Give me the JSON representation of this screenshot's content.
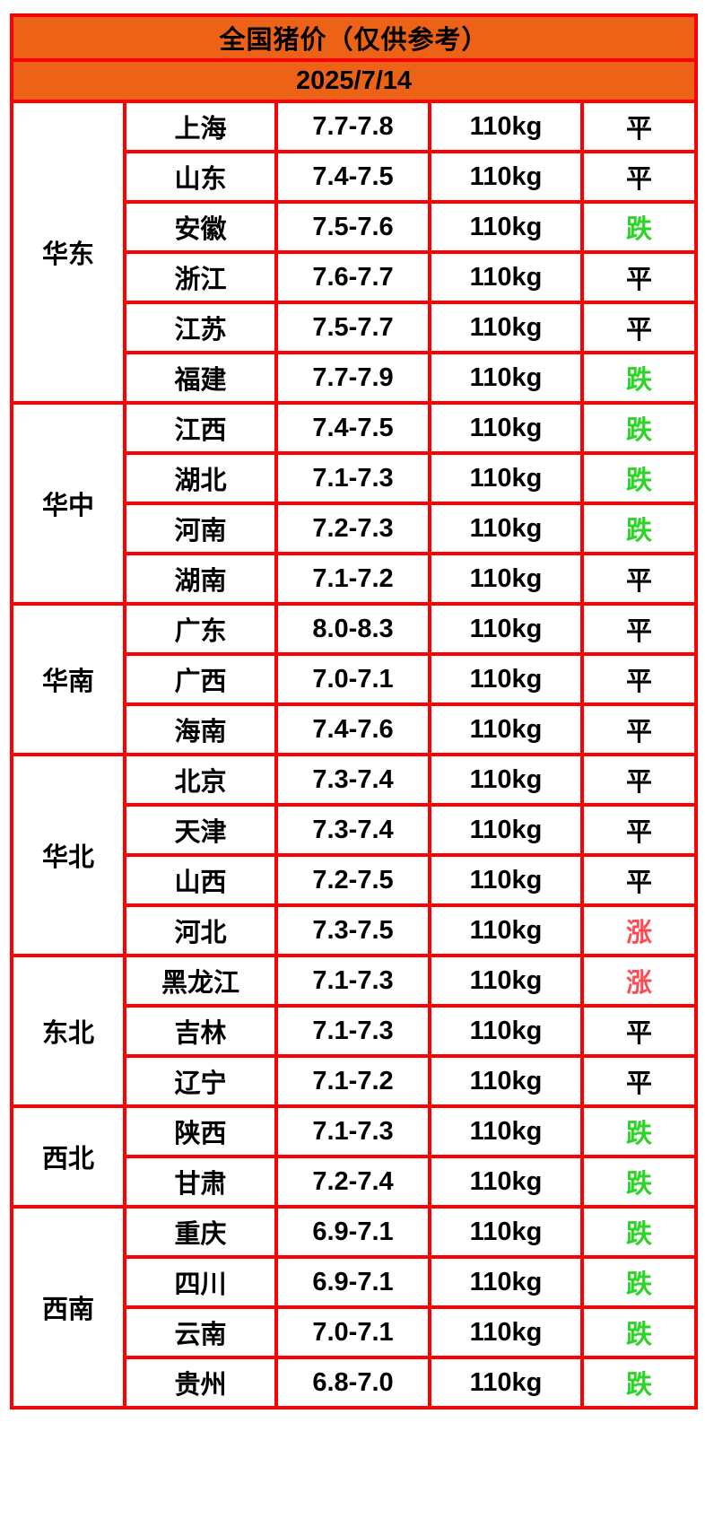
{
  "title": "全国猪价（仅供参考）",
  "date": "2025/7/14",
  "unit_note": "110kg",
  "theme": {
    "header_orange": "#ec6217",
    "grid_red": "#fe0000",
    "text_black": "#000000",
    "background_white": "#ffffff"
  },
  "status_colors": {
    "平": "#000000",
    "跌": "#2bd426",
    "涨": "#ff4a55"
  },
  "regions": [
    {
      "name": "华东",
      "provinces": [
        {
          "province": "上海",
          "price": "7.7-7.8",
          "weight": "110kg",
          "status": "平"
        },
        {
          "province": "山东",
          "price": "7.4-7.5",
          "weight": "110kg",
          "status": "平"
        },
        {
          "province": "安徽",
          "price": "7.5-7.6",
          "weight": "110kg",
          "status": "跌"
        },
        {
          "province": "浙江",
          "price": "7.6-7.7",
          "weight": "110kg",
          "status": "平"
        },
        {
          "province": "江苏",
          "price": "7.5-7.7",
          "weight": "110kg",
          "status": "平"
        },
        {
          "province": "福建",
          "price": "7.7-7.9",
          "weight": "110kg",
          "status": "跌"
        }
      ]
    },
    {
      "name": "华中",
      "provinces": [
        {
          "province": "江西",
          "price": "7.4-7.5",
          "weight": "110kg",
          "status": "跌"
        },
        {
          "province": "湖北",
          "price": "7.1-7.3",
          "weight": "110kg",
          "status": "跌"
        },
        {
          "province": "河南",
          "price": "7.2-7.3",
          "weight": "110kg",
          "status": "跌"
        },
        {
          "province": "湖南",
          "price": "7.1-7.2",
          "weight": "110kg",
          "status": "平"
        }
      ]
    },
    {
      "name": "华南",
      "provinces": [
        {
          "province": "广东",
          "price": "8.0-8.3",
          "weight": "110kg",
          "status": "平"
        },
        {
          "province": "广西",
          "price": "7.0-7.1",
          "weight": "110kg",
          "status": "平"
        },
        {
          "province": "海南",
          "price": "7.4-7.6",
          "weight": "110kg",
          "status": "平"
        }
      ]
    },
    {
      "name": "华北",
      "provinces": [
        {
          "province": "北京",
          "price": "7.3-7.4",
          "weight": "110kg",
          "status": "平"
        },
        {
          "province": "天津",
          "price": "7.3-7.4",
          "weight": "110kg",
          "status": "平"
        },
        {
          "province": "山西",
          "price": "7.2-7.5",
          "weight": "110kg",
          "status": "平"
        },
        {
          "province": "河北",
          "price": "7.3-7.5",
          "weight": "110kg",
          "status": "涨"
        }
      ]
    },
    {
      "name": "东北",
      "provinces": [
        {
          "province": "黑龙江",
          "price": "7.1-7.3",
          "weight": "110kg",
          "status": "涨"
        },
        {
          "province": "吉林",
          "price": "7.1-7.3",
          "weight": "110kg",
          "status": "平"
        },
        {
          "province": "辽宁",
          "price": "7.1-7.2",
          "weight": "110kg",
          "status": "平"
        }
      ]
    },
    {
      "name": "西北",
      "provinces": [
        {
          "province": "陕西",
          "price": "7.1-7.3",
          "weight": "110kg",
          "status": "跌"
        },
        {
          "province": "甘肃",
          "price": "7.2-7.4",
          "weight": "110kg",
          "status": "跌"
        }
      ]
    },
    {
      "name": "西南",
      "provinces": [
        {
          "province": "重庆",
          "price": "6.9-7.1",
          "weight": "110kg",
          "status": "跌"
        },
        {
          "province": "四川",
          "price": "6.9-7.1",
          "weight": "110kg",
          "status": "跌"
        },
        {
          "province": "云南",
          "price": "7.0-7.1",
          "weight": "110kg",
          "status": "跌"
        },
        {
          "province": "贵州",
          "price": "6.8-7.0",
          "weight": "110kg",
          "status": "跌"
        }
      ]
    }
  ]
}
